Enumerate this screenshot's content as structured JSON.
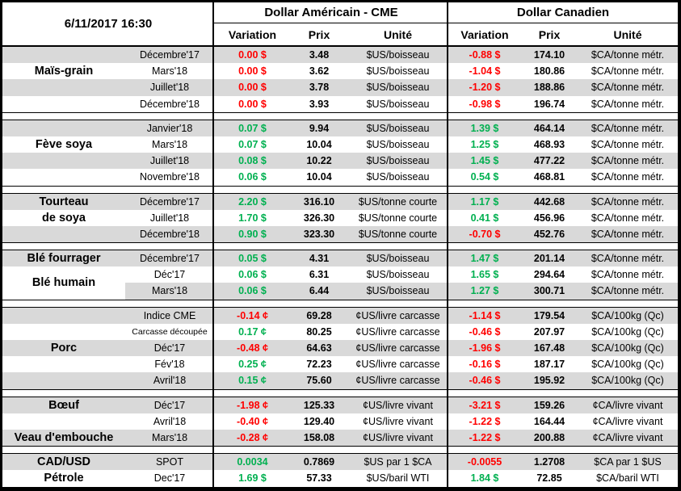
{
  "meta": {
    "datetime": "6/11/2017 16:30"
  },
  "columns": {
    "us_title": "Dollar Américain - CME",
    "ca_title": "Dollar Canadien",
    "variation": "Variation",
    "prix": "Prix",
    "unite": "Unité"
  },
  "colors": {
    "positive": "#00B050",
    "negative": "#FF0000",
    "stripe": "#D9D9D9",
    "border": "#000000"
  },
  "sections": [
    {
      "labels": [
        {
          "lines": [
            "Maïs-grain"
          ],
          "row": 0,
          "span": 3
        }
      ],
      "rows": [
        {
          "contract": "Décembre'17",
          "shade": "full",
          "us": {
            "variation": "0.00 $",
            "trend": "down",
            "prix": "3.48",
            "unite": "$US/boisseau"
          },
          "ca": {
            "variation": "-0.88 $",
            "trend": "down",
            "prix": "174.10",
            "unite": "$CA/tonne métr."
          }
        },
        {
          "contract": "Mars'18",
          "shade": "none",
          "us": {
            "variation": "0.00 $",
            "trend": "down",
            "prix": "3.62",
            "unite": "$US/boisseau"
          },
          "ca": {
            "variation": "-1.04 $",
            "trend": "down",
            "prix": "180.86",
            "unite": "$CA/tonne métr."
          }
        },
        {
          "contract": "Juillet'18",
          "shade": "full",
          "us": {
            "variation": "0.00 $",
            "trend": "down",
            "prix": "3.78",
            "unite": "$US/boisseau"
          },
          "ca": {
            "variation": "-1.20 $",
            "trend": "down",
            "prix": "188.86",
            "unite": "$CA/tonne métr."
          }
        },
        {
          "contract": "Décembre'18",
          "shade": "none",
          "us": {
            "variation": "0.00 $",
            "trend": "down",
            "prix": "3.93",
            "unite": "$US/boisseau"
          },
          "ca": {
            "variation": "-0.98 $",
            "trend": "down",
            "prix": "196.74",
            "unite": "$CA/tonne métr."
          }
        }
      ]
    },
    {
      "labels": [
        {
          "lines": [
            "Fève soya"
          ],
          "row": 0,
          "span": 3
        }
      ],
      "rows": [
        {
          "contract": "Janvier'18",
          "shade": "full",
          "us": {
            "variation": "0.07 $",
            "trend": "up",
            "prix": "9.94",
            "unite": "$US/boisseau"
          },
          "ca": {
            "variation": "1.39 $",
            "trend": "up",
            "prix": "464.14",
            "unite": "$CA/tonne métr."
          }
        },
        {
          "contract": "Mars'18",
          "shade": "none",
          "us": {
            "variation": "0.07 $",
            "trend": "up",
            "prix": "10.04",
            "unite": "$US/boisseau"
          },
          "ca": {
            "variation": "1.25 $",
            "trend": "up",
            "prix": "468.93",
            "unite": "$CA/tonne métr."
          }
        },
        {
          "contract": "Juillet'18",
          "shade": "full",
          "us": {
            "variation": "0.08 $",
            "trend": "up",
            "prix": "10.22",
            "unite": "$US/boisseau"
          },
          "ca": {
            "variation": "1.45 $",
            "trend": "up",
            "prix": "477.22",
            "unite": "$CA/tonne métr."
          }
        },
        {
          "contract": "Novembre'18",
          "shade": "none",
          "us": {
            "variation": "0.06 $",
            "trend": "up",
            "prix": "10.04",
            "unite": "$US/boisseau"
          },
          "ca": {
            "variation": "0.54 $",
            "trend": "up",
            "prix": "468.81",
            "unite": "$CA/tonne métr."
          }
        }
      ]
    },
    {
      "labels": [
        {
          "lines": [
            "Tourteau",
            "de soya"
          ],
          "row": 0,
          "span": 2
        }
      ],
      "rows": [
        {
          "contract": "Décembre'17",
          "shade": "full",
          "us": {
            "variation": "2.20 $",
            "trend": "up",
            "prix": "316.10",
            "unite": "$US/tonne courte"
          },
          "ca": {
            "variation": "1.17 $",
            "trend": "up",
            "prix": "442.68",
            "unite": "$CA/tonne métr."
          }
        },
        {
          "contract": "Juillet'18",
          "shade": "none",
          "us": {
            "variation": "1.70 $",
            "trend": "up",
            "prix": "326.30",
            "unite": "$US/tonne courte"
          },
          "ca": {
            "variation": "0.41 $",
            "trend": "up",
            "prix": "456.96",
            "unite": "$CA/tonne métr."
          }
        },
        {
          "contract": "Décembre'18",
          "shade": "full",
          "us": {
            "variation": "0.90 $",
            "trend": "up",
            "prix": "323.30",
            "unite": "$US/tonne courte"
          },
          "ca": {
            "variation": "-0.70 $",
            "trend": "down",
            "prix": "452.76",
            "unite": "$CA/tonne métr."
          }
        }
      ]
    },
    {
      "labels": [
        {
          "lines": [
            "Blé fourrager"
          ],
          "row": 0,
          "span": 1
        },
        {
          "lines": [
            "Blé humain"
          ],
          "row": 1,
          "span": 2
        }
      ],
      "rows": [
        {
          "contract": "Décembre'17",
          "shade": "full",
          "us": {
            "variation": "0.05 $",
            "trend": "up",
            "prix": "4.31",
            "unite": "$US/boisseau"
          },
          "ca": {
            "variation": "1.47 $",
            "trend": "up",
            "prix": "201.14",
            "unite": "$CA/tonne métr."
          }
        },
        {
          "contract": "Déc'17",
          "shade": "none",
          "us": {
            "variation": "0.06 $",
            "trend": "up",
            "prix": "6.31",
            "unite": "$US/boisseau"
          },
          "ca": {
            "variation": "1.65 $",
            "trend": "up",
            "prix": "294.64",
            "unite": "$CA/tonne métr."
          }
        },
        {
          "contract": "Mars'18",
          "shade": "partial",
          "us": {
            "variation": "0.06 $",
            "trend": "up",
            "prix": "6.44",
            "unite": "$US/boisseau"
          },
          "ca": {
            "variation": "1.27 $",
            "trend": "up",
            "prix": "300.71",
            "unite": "$CA/tonne métr."
          }
        }
      ]
    },
    {
      "labels": [
        {
          "lines": [
            "Porc"
          ],
          "row": 2,
          "span": 1
        }
      ],
      "rows": [
        {
          "contract": "Indice CME",
          "shade": "full",
          "us": {
            "variation": "-0.14 ¢",
            "trend": "down",
            "prix": "69.28",
            "unite": "¢US/livre carcasse"
          },
          "ca": {
            "variation": "-1.14 $",
            "trend": "down",
            "prix": "179.54",
            "unite": "$CA/100kg (Qc)"
          }
        },
        {
          "contract": "Carcasse découpée",
          "shade": "none",
          "us": {
            "variation": "0.17 ¢",
            "trend": "up",
            "prix": "80.25",
            "unite": "¢US/livre carcasse"
          },
          "ca": {
            "variation": "-0.46 $",
            "trend": "down",
            "prix": "207.97",
            "unite": "$CA/100kg (Qc)"
          }
        },
        {
          "contract": "Déc'17",
          "shade": "full",
          "us": {
            "variation": "-0.48 ¢",
            "trend": "down",
            "prix": "64.63",
            "unite": "¢US/livre carcasse"
          },
          "ca": {
            "variation": "-1.96 $",
            "trend": "down",
            "prix": "167.48",
            "unite": "$CA/100kg (Qc)"
          }
        },
        {
          "contract": "Fév'18",
          "shade": "none",
          "us": {
            "variation": "0.25 ¢",
            "trend": "up",
            "prix": "72.23",
            "unite": "¢US/livre carcasse"
          },
          "ca": {
            "variation": "-0.16 $",
            "trend": "down",
            "prix": "187.17",
            "unite": "$CA/100kg (Qc)"
          }
        },
        {
          "contract": "Avril'18",
          "shade": "full",
          "us": {
            "variation": "0.15 ¢",
            "trend": "up",
            "prix": "75.60",
            "unite": "¢US/livre carcasse"
          },
          "ca": {
            "variation": "-0.46 $",
            "trend": "down",
            "prix": "195.92",
            "unite": "$CA/100kg (Qc)"
          }
        }
      ]
    },
    {
      "labels": [
        {
          "lines": [
            "Bœuf"
          ],
          "row": 0,
          "span": 1
        },
        {
          "lines": [
            "Veau d'embouche"
          ],
          "row": 2,
          "span": 1
        }
      ],
      "rows": [
        {
          "contract": "Déc'17",
          "shade": "full",
          "us": {
            "variation": "-1.98 ¢",
            "trend": "down",
            "prix": "125.33",
            "unite": "¢US/livre vivant"
          },
          "ca": {
            "variation": "-3.21 $",
            "trend": "down",
            "prix": "159.26",
            "unite": "¢CA/livre vivant"
          }
        },
        {
          "contract": "Avril'18",
          "shade": "none",
          "us": {
            "variation": "-0.40 ¢",
            "trend": "down",
            "prix": "129.40",
            "unite": "¢US/livre vivant"
          },
          "ca": {
            "variation": "-1.22 $",
            "trend": "down",
            "prix": "164.44",
            "unite": "¢CA/livre vivant"
          }
        },
        {
          "contract": "Mars'18",
          "shade": "full",
          "us": {
            "variation": "-0.28 ¢",
            "trend": "down",
            "prix": "158.08",
            "unite": "¢US/livre vivant"
          },
          "ca": {
            "variation": "-1.22 $",
            "trend": "down",
            "prix": "200.88",
            "unite": "¢CA/livre vivant"
          }
        }
      ]
    },
    {
      "labels": [
        {
          "lines": [
            "CAD/USD"
          ],
          "row": 0,
          "span": 1
        },
        {
          "lines": [
            "Pétrole"
          ],
          "row": 1,
          "span": 1
        }
      ],
      "rows": [
        {
          "contract": "SPOT",
          "shade": "full",
          "us": {
            "variation": "0.0034",
            "trend": "up",
            "prix": "0.7869",
            "unite": "$US par 1 $CA"
          },
          "ca": {
            "variation": "-0.0055",
            "trend": "down",
            "prix": "1.2708",
            "unite": "$CA par 1 $US"
          }
        },
        {
          "contract": "Dec'17",
          "shade": "none",
          "us": {
            "variation": "1.69 $",
            "trend": "up",
            "prix": "57.33",
            "unite": "$US/baril WTI"
          },
          "ca": {
            "variation": "1.84 $",
            "trend": "up",
            "prix": "72.85",
            "unite": "$CA/baril WTI"
          }
        }
      ]
    }
  ]
}
